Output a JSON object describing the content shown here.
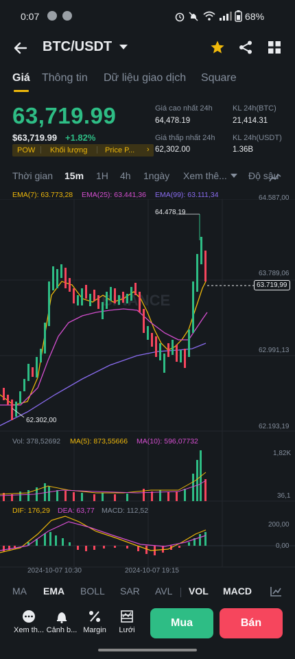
{
  "status_bar": {
    "time": "0:07",
    "battery": "68%"
  },
  "header": {
    "pair": "BTC/USDT"
  },
  "tabs": [
    "Giá",
    "Thông tin",
    "Dữ liệu giao dịch",
    "Square"
  ],
  "ticker": {
    "last_price": "63,719.99",
    "usd_price": "$63,719.99",
    "change": "+1.82%",
    "tags": [
      "POW",
      "Khối lượng",
      "Price P..."
    ],
    "high_label": "Giá cao nhất 24h",
    "high_value": "64,478.19",
    "low_label": "Giá thấp nhất 24h",
    "low_value": "62,302.00",
    "vol_btc_label": "KL 24h(BTC)",
    "vol_btc_value": "21,414.31",
    "vol_usdt_label": "KL 24h(USDT)",
    "vol_usdt_value": "1.36B"
  },
  "timeframes": {
    "label": "Thời gian",
    "items": [
      "15m",
      "1H",
      "4h",
      "1ngày"
    ],
    "active": "15m",
    "more": "Xem thê...",
    "depth": "Độ sâu"
  },
  "ema_legend": {
    "ema7": "EMA(7): 63.773,28",
    "ema25": "EMA(25): 63.441,36",
    "ema99": "EMA(99): 63.111,34"
  },
  "price_axis": [
    "64.587,00",
    "63.789,06",
    "62.991,13",
    "62.193,19"
  ],
  "current_price_tag": "63.719,99",
  "high_marker": "64.478,19",
  "low_marker": "62.302,00",
  "watermark": "BINANCE",
  "volume_legend": {
    "vol": "Vol: 378,52692",
    "ma5": "MA(5): 873,55666",
    "ma10": "MA(10): 596,07732"
  },
  "volume_axis": [
    "1,82K",
    "36,1"
  ],
  "macd_legend": {
    "dif": "DIF: 176,29",
    "dea": "DEA: 63,77",
    "macd": "MACD: 112,52"
  },
  "macd_axis": [
    "200,00",
    "0,00"
  ],
  "time_axis": [
    "2024-10-07 10:30",
    "2024-10-07 19:15"
  ],
  "indicators": [
    "MA",
    "EMA",
    "BOLL",
    "SAR",
    "AVL",
    "VOL",
    "MACD"
  ],
  "indicators_active": [
    "EMA",
    "VOL",
    "MACD"
  ],
  "tools": [
    "Xem th...",
    "Cảnh b...",
    "Margin",
    "Lưới"
  ],
  "buy_label": "Mua",
  "sell_label": "Bán",
  "colors": {
    "background": "#161a1e",
    "up": "#2ebd85",
    "down": "#f6465d",
    "accent": "#f0b90b",
    "ema7": "#f0b90b",
    "ema25": "#d64fd1",
    "ema99": "#8a6cf0"
  },
  "icons": [
    "back-arrow-icon",
    "caret-down-icon",
    "star-icon",
    "share-icon",
    "grid-icon",
    "more-dots-icon",
    "bell-icon",
    "percent-icon",
    "grid-trading-icon",
    "chart-settings-icon",
    "depth-chart-icon"
  ]
}
